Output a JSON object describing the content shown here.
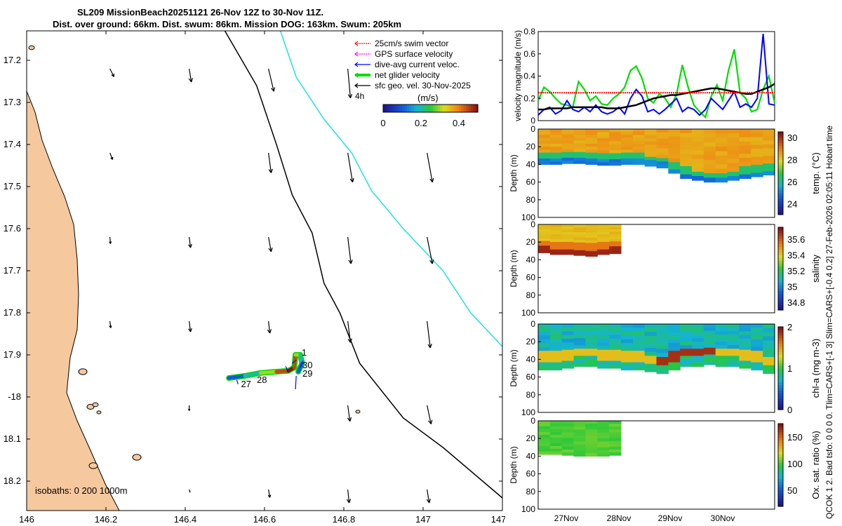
{
  "title": {
    "line1": "SL209 MissionBeach20251121 26-Nov 12Z to 30-Nov 11Z.",
    "line2": "Dist. over ground: 66km. Dist. swum: 86km. Mission DOG: 163km. Swum: 205km"
  },
  "side_text": {
    "right_vertical_1": "QCOK 1  2. Bad tsfo: 0  0  0  0. Tlim=CARS+[-1 3] Slim=CARS+[-0.4 0.2] 27-Feb-2026 02:05:11 Hobart time"
  },
  "map": {
    "x_ticks": [
      146,
      146.2,
      146.4,
      146.6,
      146.8,
      147,
      147.2
    ],
    "y_ticks": [
      -17.2,
      -17.3,
      -17.4,
      -17.5,
      -17.6,
      -17.7,
      -17.8,
      -17.9,
      -18,
      -18.1,
      -18.2
    ],
    "y_tick_labels": [
      "17.2",
      "17.3",
      "17.4",
      "17.5",
      "17.6",
      "17.7",
      "17.8",
      "17.9",
      "-18",
      "18.1",
      "18.2"
    ],
    "x_range": [
      146,
      147.2
    ],
    "y_range": [
      -18.27,
      -17.13
    ],
    "isobath_label": "isobaths: 0   200 1000m",
    "legend": [
      {
        "label": "25cm/s swim vector",
        "color": "#ff0000",
        "style": "dotted"
      },
      {
        "label": "GPS surface velocity",
        "color": "#ff00ff",
        "style": "dotted"
      },
      {
        "label": "dive-avg current veloc.",
        "color": "#0000ff",
        "style": "solid"
      },
      {
        "label": "net glider velocity",
        "color": "#00dd00",
        "style": "thick"
      },
      {
        "label": "sfc geo. vel. 30-Nov-2025",
        "color": "#000000",
        "style": "solid"
      }
    ],
    "legend_extra": "4h",
    "colorbar": {
      "label": "(m/s)",
      "ticks": [
        "0",
        "0.2",
        "0.4"
      ],
      "range": [
        0,
        0.5
      ]
    },
    "day_labels": [
      "27",
      "28",
      "29",
      "30",
      "1"
    ],
    "geo_arrows": [
      {
        "lon": 146.21,
        "lat": -17.22,
        "u": 0.15,
        "v": -0.3
      },
      {
        "lon": 146.41,
        "lat": -17.22,
        "u": 0.08,
        "v": -0.5
      },
      {
        "lon": 146.61,
        "lat": -17.22,
        "u": 0.2,
        "v": -0.85
      },
      {
        "lon": 146.81,
        "lat": -17.22,
        "u": 0.1,
        "v": -1.1
      },
      {
        "lon": 146.21,
        "lat": -17.42,
        "u": 0.1,
        "v": -0.25
      },
      {
        "lon": 146.41,
        "lat": -17.42,
        "u": 0.0,
        "v": 0.0
      },
      {
        "lon": 146.61,
        "lat": -17.42,
        "u": 0.1,
        "v": -0.75
      },
      {
        "lon": 146.81,
        "lat": -17.42,
        "u": 0.18,
        "v": -1.1
      },
      {
        "lon": 147.01,
        "lat": -17.42,
        "u": 0.2,
        "v": -1.1
      },
      {
        "lon": 146.21,
        "lat": -17.62,
        "u": 0.02,
        "v": -0.25
      },
      {
        "lon": 146.41,
        "lat": -17.62,
        "u": 0.05,
        "v": -0.4
      },
      {
        "lon": 146.61,
        "lat": -17.62,
        "u": 0.1,
        "v": -0.55
      },
      {
        "lon": 146.81,
        "lat": -17.62,
        "u": 0.12,
        "v": -1.0
      },
      {
        "lon": 147.01,
        "lat": -17.62,
        "u": 0.2,
        "v": -1.0
      },
      {
        "lon": 146.21,
        "lat": -17.82,
        "u": 0.03,
        "v": -0.25
      },
      {
        "lon": 146.41,
        "lat": -17.82,
        "u": 0.05,
        "v": -0.4
      },
      {
        "lon": 146.61,
        "lat": -17.82,
        "u": 0.05,
        "v": -0.45
      },
      {
        "lon": 146.81,
        "lat": -17.82,
        "u": 0.1,
        "v": -0.8
      },
      {
        "lon": 147.01,
        "lat": -17.82,
        "u": 0.12,
        "v": -1.0
      },
      {
        "lon": 146.21,
        "lat": -18.02,
        "u": 0.0,
        "v": 0.0
      },
      {
        "lon": 146.41,
        "lat": -18.02,
        "u": 0.0,
        "v": -0.2
      },
      {
        "lon": 146.81,
        "lat": -18.02,
        "u": 0.08,
        "v": -0.6
      },
      {
        "lon": 147.01,
        "lat": -18.02,
        "u": 0.15,
        "v": -0.7
      },
      {
        "lon": 146.21,
        "lat": -18.22,
        "u": 0.0,
        "v": 0.0
      },
      {
        "lon": 146.41,
        "lat": -18.22,
        "u": 0.03,
        "v": -0.1
      },
      {
        "lon": 146.61,
        "lat": -18.22,
        "u": 0.05,
        "v": -0.3
      },
      {
        "lon": 146.81,
        "lat": -18.22,
        "u": 0.05,
        "v": -0.5
      },
      {
        "lon": 147.01,
        "lat": -18.22,
        "u": 0.08,
        "v": -0.5
      }
    ],
    "isobath_200": [
      [
        146.5,
        -17.13
      ],
      [
        146.58,
        -17.26
      ],
      [
        146.63,
        -17.4
      ],
      [
        146.67,
        -17.52
      ],
      [
        146.72,
        -17.61
      ],
      [
        146.75,
        -17.73
      ],
      [
        146.79,
        -17.8
      ],
      [
        146.84,
        -17.92
      ],
      [
        146.95,
        -18.05
      ],
      [
        147.05,
        -18.12
      ],
      [
        147.2,
        -18.24
      ]
    ],
    "isobath_1000": [
      [
        146.64,
        -17.13
      ],
      [
        146.68,
        -17.24
      ],
      [
        146.75,
        -17.34
      ],
      [
        146.82,
        -17.42
      ],
      [
        146.87,
        -17.51
      ],
      [
        146.95,
        -17.6
      ],
      [
        147.05,
        -17.7
      ],
      [
        147.12,
        -17.8
      ],
      [
        147.2,
        -17.88
      ]
    ],
    "track": [
      [
        146.51,
        -17.955
      ],
      [
        146.55,
        -17.95
      ],
      [
        146.59,
        -17.943
      ],
      [
        146.63,
        -17.94
      ],
      [
        146.66,
        -17.938
      ],
      [
        146.675,
        -17.93
      ],
      [
        146.678,
        -17.9
      ],
      [
        146.69,
        -17.9
      ],
      [
        146.695,
        -17.92
      ],
      [
        146.685,
        -17.94
      ]
    ],
    "track_speeds": [
      0.1,
      0.2,
      0.3,
      0.45,
      0.5,
      0.45,
      0.3,
      0.2,
      0.1
    ]
  },
  "velocity_panel": {
    "ylabel": "velocity magnitude (m/s)",
    "ylim": [
      0,
      0.8
    ],
    "yticks": [
      "0",
      "0.2",
      "0.4",
      "0.6",
      "0.8"
    ],
    "series": [
      {
        "name": "net glider velocity",
        "color": "#00dd00",
        "values": [
          0.18,
          0.3,
          0.26,
          0.2,
          0.15,
          0.14,
          0.12,
          0.35,
          0.28,
          0.18,
          0.22,
          0.15,
          0.14,
          0.2,
          0.24,
          0.3,
          0.45,
          0.49,
          0.38,
          0.2,
          0.16,
          0.24,
          0.2,
          0.12,
          0.24,
          0.5,
          0.3,
          0.14,
          0.08,
          0.03,
          0.22,
          0.32,
          0.18,
          0.45,
          0.64,
          0.25,
          0.2,
          0.08,
          0.1,
          0.28,
          0.4,
          0.16
        ]
      },
      {
        "name": "dive-avg current veloc.",
        "color": "#0000ff",
        "values": [
          0.05,
          0.1,
          0.12,
          0.06,
          0.09,
          0.18,
          0.1,
          0.08,
          0.12,
          0.08,
          0.14,
          0.08,
          0.06,
          0.08,
          0.12,
          0.06,
          0.2,
          0.28,
          0.22,
          0.08,
          0.1,
          0.06,
          0.1,
          0.15,
          0.2,
          0.08,
          0.12,
          0.1,
          0.05,
          0.1,
          0.2,
          0.15,
          0.1,
          0.18,
          0.26,
          0.12,
          0.15,
          0.12,
          0.2,
          0.78,
          0.15,
          0.14
        ]
      },
      {
        "name": "sfc geo. vel.",
        "color": "#000000",
        "values": [
          0.1,
          0.1,
          0.11,
          0.11,
          0.11,
          0.11,
          0.12,
          0.12,
          0.12,
          0.12,
          0.12,
          0.12,
          0.11,
          0.11,
          0.11,
          0.12,
          0.13,
          0.14,
          0.16,
          0.18,
          0.2,
          0.21,
          0.22,
          0.23,
          0.23,
          0.24,
          0.25,
          0.26,
          0.27,
          0.28,
          0.29,
          0.29,
          0.28,
          0.27,
          0.26,
          0.25,
          0.24,
          0.24,
          0.26,
          0.28,
          0.3,
          0.33
        ]
      },
      {
        "name": "25cm/s swim vector",
        "color": "#ff0000",
        "values": [
          0.25,
          0.25,
          0.25,
          0.25,
          0.25,
          0.25,
          0.25,
          0.25,
          0.25,
          0.25,
          0.25,
          0.25,
          0.25,
          0.25,
          0.25,
          0.25,
          0.25,
          0.25,
          0.25,
          0.25,
          0.25,
          0.25,
          0.25,
          0.25,
          0.25,
          0.25,
          0.25,
          0.25,
          0.25,
          0.25,
          0.25,
          0.25,
          0.25,
          0.25,
          0.25,
          0.25,
          0.25,
          0.25,
          0.25,
          0.25,
          0.25,
          0.25
        ]
      }
    ]
  },
  "sections": {
    "depth_ticks": [
      "0",
      "20",
      "40",
      "60",
      "80",
      "100"
    ],
    "depth_label": "Depth (m)",
    "x_labels": [
      "27Nov",
      "28Nov",
      "29Nov",
      "30Nov"
    ],
    "panels": [
      {
        "name": "temperature",
        "label": "temp. (°C)",
        "ticks": [
          "24",
          "26",
          "28",
          "30"
        ],
        "range": [
          23,
          30.5
        ],
        "coverage": 1.0,
        "mld_profile": [
          32,
          32,
          31,
          31,
          32,
          33,
          33,
          32,
          32,
          34,
          36,
          42,
          48,
          50,
          52,
          52,
          50,
          48,
          46,
          44
        ]
      },
      {
        "name": "salinity",
        "label": "salinity",
        "ticks": [
          "34.8",
          "35",
          "35.2",
          "35.4",
          "35.6"
        ],
        "range": [
          34.7,
          35.75
        ],
        "coverage": 0.35,
        "mld_profile": [
          28,
          30,
          30,
          31,
          32,
          30,
          29
        ]
      },
      {
        "name": "chlorophyll",
        "label": "chl-a (mg m-3)",
        "ticks": [
          "0",
          "1",
          "2"
        ],
        "range": [
          0,
          2
        ],
        "coverage": 1.0,
        "mld_profile": [
          40,
          40,
          38,
          36,
          36,
          38,
          38,
          40,
          40,
          42,
          44,
          40,
          36,
          36,
          34,
          36,
          36,
          38,
          40,
          44
        ]
      },
      {
        "name": "oxygen",
        "label": "Ox. sat. ratio (%)",
        "ticks": [
          "50",
          "100",
          "150"
        ],
        "range": [
          20,
          175
        ],
        "coverage": 0.35,
        "mld_profile": [
          34,
          34,
          35,
          36,
          36,
          36,
          35
        ]
      }
    ]
  }
}
